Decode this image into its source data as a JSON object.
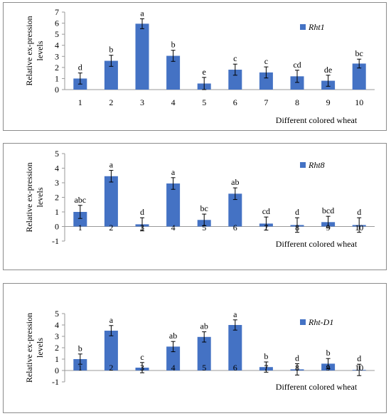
{
  "chart_data": [
    {
      "type": "bar",
      "ylabel": "Relative ex-pression levels",
      "xlabel": "Different colored wheat",
      "categories": [
        "1",
        "2",
        "3",
        "4",
        "5",
        "6",
        "7",
        "8",
        "9",
        "10"
      ],
      "ylim": [
        0,
        7
      ],
      "yticks": [
        "0",
        "1",
        "2",
        "3",
        "4",
        "5",
        "6",
        "7"
      ],
      "grid": false,
      "legend_position": "top-right",
      "series": [
        {
          "name": "Rht1",
          "color": "#4472C4",
          "values": [
            1.0,
            2.6,
            5.95,
            3.05,
            0.55,
            1.8,
            1.55,
            1.2,
            0.8,
            2.35
          ],
          "errors": [
            0.5,
            0.5,
            0.45,
            0.5,
            0.55,
            0.5,
            0.5,
            0.55,
            0.5,
            0.4
          ],
          "significance": [
            "d",
            "b",
            "a",
            "b",
            "e",
            "c",
            "c",
            "cd",
            "de",
            "bc"
          ]
        }
      ]
    },
    {
      "type": "bar",
      "ylabel": "Relative ex-pression levels",
      "xlabel": "Different colored wheat",
      "categories": [
        "1",
        "2",
        "3",
        "4",
        "5",
        "6",
        "7",
        "8",
        "9",
        "10"
      ],
      "ylim": [
        -1,
        5
      ],
      "yticks": [
        "-1",
        "0",
        "1",
        "2",
        "3",
        "4",
        "5"
      ],
      "grid": false,
      "legend_position": "top-right",
      "series": [
        {
          "name": "Rht8",
          "color": "#4472C4",
          "values": [
            1.0,
            3.45,
            0.15,
            2.95,
            0.45,
            2.25,
            0.2,
            0.1,
            0.3,
            0.1
          ],
          "errors": [
            0.45,
            0.4,
            0.45,
            0.4,
            0.4,
            0.4,
            0.45,
            0.5,
            0.4,
            0.5
          ],
          "significance": [
            "abc",
            "a",
            "d",
            "a",
            "bc",
            "ab",
            "cd",
            "d",
            "bcd",
            "d"
          ]
        }
      ]
    },
    {
      "type": "bar",
      "ylabel": "Relative ex-pression levels",
      "xlabel": "Different colored wheat",
      "categories": [
        "1",
        "2",
        "3",
        "4",
        "5",
        "6",
        "7",
        "8",
        "9",
        "10"
      ],
      "ylim": [
        -1,
        5
      ],
      "yticks": [
        "-1",
        "0",
        "1",
        "2",
        "3",
        "4",
        "5"
      ],
      "grid": false,
      "legend_position": "top-right",
      "series": [
        {
          "name": "Rht-D1",
          "color": "#4472C4",
          "values": [
            1.0,
            3.5,
            0.25,
            2.1,
            2.95,
            4.0,
            0.3,
            0.1,
            0.6,
            0.05
          ],
          "errors": [
            0.45,
            0.45,
            0.45,
            0.45,
            0.45,
            0.45,
            0.45,
            0.5,
            0.45,
            0.5
          ],
          "significance": [
            "b",
            "a",
            "c",
            "ab",
            "ab",
            "a",
            "b",
            "d",
            "b",
            "d"
          ]
        }
      ]
    }
  ]
}
